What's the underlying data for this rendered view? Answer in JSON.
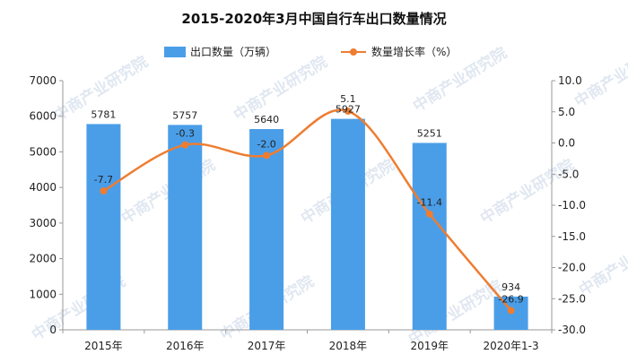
{
  "watermark": "中商产业研究院",
  "chart_data": {
    "type": "bar",
    "title": "2015-2020年3月中国自行车出口数量情况",
    "categories": [
      "2015年",
      "2016年",
      "2017年",
      "2018年",
      "2019年",
      "2020年1-3"
    ],
    "series": [
      {
        "name": "出口数量（万辆）",
        "type": "bar",
        "axis": "left",
        "color": "#4a9ee8",
        "values": [
          5781,
          5757,
          5640,
          5927,
          5251,
          934
        ]
      },
      {
        "name": "数量增长率（%）",
        "type": "line",
        "axis": "right",
        "color": "#ee7d31",
        "values": [
          -7.7,
          -0.3,
          -2.0,
          5.1,
          -11.4,
          -26.9
        ]
      }
    ],
    "bar_labels": [
      "5781",
      "5757",
      "5640",
      "5927",
      "5251",
      "934"
    ],
    "line_labels": [
      "-7.7",
      "-0.3",
      "-2.0",
      "5.1",
      "-11.4",
      "-26.9"
    ],
    "ylim": [
      0,
      7000
    ],
    "y_ticks": [
      "0",
      "1000",
      "2000",
      "3000",
      "4000",
      "5000",
      "6000",
      "7000"
    ],
    "y2lim": [
      -30,
      10
    ],
    "y2_ticks": [
      "-30.0",
      "-25.0",
      "-20.0",
      "-15.0",
      "-10.0",
      "-5.0",
      "0.0",
      "5.0",
      "10.0"
    ],
    "legend_position": "top-center",
    "grid": false
  }
}
